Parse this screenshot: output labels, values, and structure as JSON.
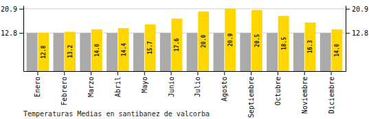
{
  "chart_data": {
    "type": "bar",
    "title": "Temperaturas Medias en santibanez de valcorba",
    "categories": [
      "Enero",
      "Febrero",
      "Marzo",
      "Abril",
      "Mayo",
      "Junio",
      "Julio",
      "Agosto",
      "Septiembre",
      "Octubre",
      "Noviembre",
      "Diciembre"
    ],
    "series": [
      {
        "color": "#AAAAAA",
        "values": [
          12.8,
          12.8,
          12.8,
          12.8,
          12.8,
          12.8,
          12.8,
          12.8,
          12.8,
          12.8,
          12.8,
          12.8
        ]
      },
      {
        "color": "#FFD700",
        "values": [
          12.8,
          13.2,
          14.0,
          14.4,
          15.7,
          17.6,
          20.0,
          20.9,
          20.5,
          18.5,
          16.3,
          14.0
        ],
        "value_labels": [
          "12.8",
          "13.2",
          "14.0",
          "14.4",
          "15.7",
          "17.6",
          "20.0",
          "20.9",
          "20.5",
          "18.5",
          "16.3",
          "14.0"
        ],
        "data_labels": true
      }
    ],
    "ylim": [
      0,
      22.0
    ],
    "yticks": [
      12.8,
      20.9
    ],
    "y2lim": [
      0,
      22.0
    ],
    "y2ticks": [
      12.8,
      20.9
    ],
    "grid": true
  }
}
